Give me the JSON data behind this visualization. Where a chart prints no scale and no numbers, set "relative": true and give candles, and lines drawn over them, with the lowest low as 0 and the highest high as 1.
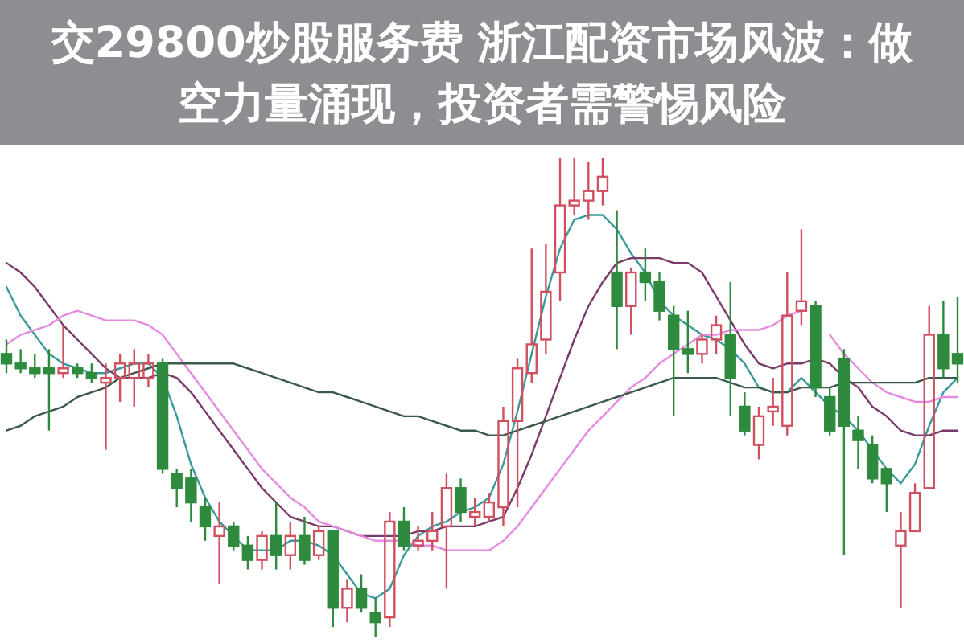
{
  "chart_data": {
    "type": "candlestick",
    "relative": true,
    "title": "交29800炒股服务费 浙江配资市场风波：做空力量涌现，投资者需警惕风险",
    "categories": [
      null,
      null,
      null,
      null,
      null,
      null,
      null,
      null,
      null,
      null,
      null,
      null,
      null,
      null,
      null,
      null,
      null,
      null,
      null,
      null,
      null,
      null,
      null,
      null,
      null,
      null,
      null,
      null,
      null,
      null,
      null,
      null,
      null,
      null,
      null,
      null,
      null,
      null,
      null,
      null,
      null,
      null,
      null,
      null,
      null,
      null,
      null,
      null,
      null,
      null,
      null,
      null,
      null,
      null,
      null,
      null,
      null,
      null,
      null,
      null,
      null,
      null,
      null,
      null,
      null,
      null,
      null,
      null
    ],
    "ohlc": [
      [
        0.59,
        0.62,
        0.55,
        0.57
      ],
      [
        0.57,
        0.6,
        0.55,
        0.56
      ],
      [
        0.56,
        0.59,
        0.54,
        0.55
      ],
      [
        0.56,
        0.6,
        0.43,
        0.55
      ],
      [
        0.55,
        0.65,
        0.54,
        0.56
      ],
      [
        0.56,
        0.57,
        0.54,
        0.55
      ],
      [
        0.55,
        0.57,
        0.53,
        0.54
      ],
      [
        0.53,
        0.57,
        0.39,
        0.54
      ],
      [
        0.54,
        0.59,
        0.49,
        0.57
      ],
      [
        0.54,
        0.6,
        0.48,
        0.57
      ],
      [
        0.54,
        0.59,
        0.52,
        0.57
      ],
      [
        0.57,
        0.58,
        0.34,
        0.35
      ],
      [
        0.34,
        0.35,
        0.27,
        0.31
      ],
      [
        0.33,
        0.35,
        0.24,
        0.28
      ],
      [
        0.27,
        0.29,
        0.2,
        0.23
      ],
      [
        0.21,
        0.28,
        0.11,
        0.23
      ],
      [
        0.23,
        0.24,
        0.18,
        0.19
      ],
      [
        0.19,
        0.21,
        0.14,
        0.16
      ],
      [
        0.16,
        0.22,
        0.14,
        0.21
      ],
      [
        0.21,
        0.28,
        0.14,
        0.17
      ],
      [
        0.17,
        0.24,
        0.14,
        0.21
      ],
      [
        0.21,
        0.25,
        0.15,
        0.16
      ],
      [
        0.17,
        0.23,
        0.16,
        0.22
      ],
      [
        0.22,
        0.22,
        0.02,
        0.06
      ],
      [
        0.06,
        0.12,
        0.03,
        0.1
      ],
      [
        0.1,
        0.13,
        0.05,
        0.06
      ],
      [
        0.05,
        0.08,
        0.0,
        0.03
      ],
      [
        0.04,
        0.26,
        0.02,
        0.24
      ],
      [
        0.24,
        0.27,
        0.18,
        0.19
      ],
      [
        0.19,
        0.23,
        0.18,
        0.2
      ],
      [
        0.2,
        0.26,
        0.18,
        0.22
      ],
      [
        0.23,
        0.34,
        0.1,
        0.31
      ],
      [
        0.31,
        0.33,
        0.24,
        0.26
      ],
      [
        0.25,
        0.29,
        0.23,
        0.26
      ],
      [
        0.25,
        0.3,
        0.24,
        0.28
      ],
      [
        0.27,
        0.48,
        0.23,
        0.45
      ],
      [
        0.45,
        0.58,
        0.27,
        0.56
      ],
      [
        0.55,
        0.81,
        0.53,
        0.61
      ],
      [
        0.62,
        0.82,
        0.59,
        0.72
      ],
      [
        0.76,
        1.0,
        0.7,
        0.9
      ],
      [
        0.9,
        1.0,
        0.88,
        0.91
      ],
      [
        0.91,
        0.99,
        0.87,
        0.93
      ],
      [
        0.93,
        1.0,
        0.9,
        0.96
      ],
      [
        0.76,
        0.89,
        0.6,
        0.69
      ],
      [
        0.69,
        0.77,
        0.63,
        0.76
      ],
      [
        0.76,
        0.81,
        0.7,
        0.74
      ],
      [
        0.74,
        0.76,
        0.66,
        0.68
      ],
      [
        0.67,
        0.69,
        0.46,
        0.6
      ],
      [
        0.6,
        0.68,
        0.55,
        0.59
      ],
      [
        0.59,
        0.63,
        0.57,
        0.62
      ],
      [
        0.62,
        0.67,
        0.59,
        0.65
      ],
      [
        0.63,
        0.74,
        0.46,
        0.54
      ],
      [
        0.48,
        0.51,
        0.42,
        0.43
      ],
      [
        0.4,
        0.48,
        0.37,
        0.46
      ],
      [
        0.47,
        0.54,
        0.44,
        0.48
      ],
      [
        0.44,
        0.76,
        0.42,
        0.67
      ],
      [
        0.68,
        0.85,
        0.65,
        0.7
      ],
      [
        0.69,
        0.7,
        0.5,
        0.52
      ],
      [
        0.5,
        0.52,
        0.42,
        0.43
      ],
      [
        0.58,
        0.6,
        0.17,
        0.44
      ],
      [
        0.43,
        0.46,
        0.35,
        0.41
      ],
      [
        0.4,
        0.42,
        0.32,
        0.33
      ],
      [
        0.35,
        0.35,
        0.26,
        0.32
      ],
      [
        0.19,
        0.26,
        0.06,
        0.22
      ],
      [
        0.22,
        0.32,
        0.22,
        0.3
      ],
      [
        0.31,
        0.69,
        0.31,
        0.63
      ],
      [
        0.63,
        0.7,
        0.54,
        0.56
      ],
      [
        0.59,
        0.71,
        0.53,
        0.57
      ]
    ],
    "colors": [
      "#2e8b3e",
      "#2e8b3e",
      "#2e8b3e",
      "#2e8b3e",
      "#d05060",
      "#2e8b3e",
      "#2e8b3e",
      "#d05060",
      "#d05060",
      "#d05060",
      "#d05060",
      "#2e8b3e",
      "#2e8b3e",
      "#2e8b3e",
      "#2e8b3e",
      "#d05060",
      "#2e8b3e",
      "#2e8b3e",
      "#d05060",
      "#2e8b3e",
      "#d05060",
      "#2e8b3e",
      "#d05060",
      "#2e8b3e",
      "#d05060",
      "#2e8b3e",
      "#2e8b3e",
      "#d05060",
      "#2e8b3e",
      "#d05060",
      "#d05060",
      "#d05060",
      "#2e8b3e",
      "#d05060",
      "#d05060",
      "#d05060",
      "#d05060",
      "#d05060",
      "#d05060",
      "#d05060",
      "#d05060",
      "#d05060",
      "#d05060",
      "#2e8b3e",
      "#d05060",
      "#2e8b3e",
      "#2e8b3e",
      "#2e8b3e",
      "#2e8b3e",
      "#d05060",
      "#d05060",
      "#2e8b3e",
      "#2e8b3e",
      "#d05060",
      "#d05060",
      "#d05060",
      "#d05060",
      "#2e8b3e",
      "#2e8b3e",
      "#2e8b3e",
      "#2e8b3e",
      "#2e8b3e",
      "#2e8b3e",
      "#d05060",
      "#d05060",
      "#d05060",
      "#2e8b3e",
      "#2e8b3e"
    ],
    "series": [
      {
        "type": "line",
        "color": "#3a9a9a",
        "values": [
          0.73,
          0.67,
          0.63,
          0.59,
          0.57,
          0.56,
          0.55,
          0.55,
          0.56,
          0.57,
          0.57,
          0.54,
          0.46,
          0.36,
          0.29,
          0.24,
          0.21,
          0.18,
          0.18,
          0.18,
          0.2,
          0.2,
          0.19,
          0.17,
          0.13,
          0.09,
          0.08,
          0.1,
          0.17,
          0.21,
          0.23,
          0.24,
          0.26,
          0.27,
          0.29,
          0.36,
          0.47,
          0.59,
          0.71,
          0.81,
          0.87,
          0.88,
          0.88,
          0.85,
          0.8,
          0.76,
          0.7,
          0.67,
          0.65,
          0.63,
          0.62,
          0.6,
          0.57,
          0.52,
          0.51,
          0.51,
          0.54,
          0.51,
          0.48,
          0.46,
          0.43,
          0.39,
          0.35,
          0.32,
          0.36,
          0.44,
          0.51,
          0.54
        ]
      },
      {
        "type": "line",
        "color": "#7a3a6a",
        "values": [
          0.78,
          0.76,
          0.73,
          0.69,
          0.65,
          0.62,
          0.59,
          0.56,
          0.54,
          0.54,
          0.54,
          0.55,
          0.54,
          0.51,
          0.47,
          0.43,
          0.39,
          0.35,
          0.31,
          0.28,
          0.25,
          0.24,
          0.23,
          0.23,
          0.22,
          0.21,
          0.21,
          0.21,
          0.21,
          0.22,
          0.22,
          0.23,
          0.23,
          0.23,
          0.24,
          0.25,
          0.31,
          0.38,
          0.46,
          0.54,
          0.62,
          0.69,
          0.74,
          0.78,
          0.79,
          0.79,
          0.79,
          0.78,
          0.78,
          0.76,
          0.71,
          0.66,
          0.61,
          0.57,
          0.56,
          0.57,
          0.57,
          0.58,
          0.57,
          0.54,
          0.52,
          0.48,
          0.46,
          0.43,
          0.42,
          0.42,
          0.43,
          0.43
        ]
      },
      {
        "type": "line",
        "color": "#e58ae0",
        "values": [
          0.61,
          0.63,
          0.64,
          0.65,
          0.67,
          0.68,
          0.67,
          0.66,
          0.66,
          0.66,
          0.65,
          0.63,
          0.59,
          0.55,
          0.51,
          0.47,
          0.43,
          0.39,
          0.35,
          0.32,
          0.29,
          0.27,
          0.24,
          0.23,
          0.22,
          0.21,
          0.2,
          0.2,
          0.2,
          0.19,
          0.19,
          0.18,
          0.18,
          0.18,
          0.18,
          0.2,
          0.23,
          0.27,
          0.31,
          0.35,
          0.39,
          0.43,
          0.46,
          0.49,
          0.52,
          0.54,
          0.57,
          0.59,
          0.61,
          0.63,
          0.63,
          0.64,
          0.64,
          0.64,
          0.65,
          0.67,
          0.68,
          null,
          0.63,
          0.59,
          0.56,
          0.53,
          0.51,
          0.5,
          0.49,
          0.49,
          0.5,
          0.5
        ]
      },
      {
        "type": "line",
        "color": "#3c5a4c",
        "values": [
          0.43,
          0.44,
          0.46,
          0.47,
          0.48,
          0.5,
          0.51,
          0.52,
          0.54,
          0.55,
          0.56,
          0.57,
          0.57,
          0.57,
          0.57,
          0.57,
          0.57,
          0.56,
          0.55,
          0.54,
          0.53,
          0.52,
          0.51,
          0.51,
          0.5,
          0.49,
          0.48,
          0.47,
          0.46,
          0.46,
          0.45,
          0.44,
          0.43,
          0.43,
          0.42,
          0.42,
          0.43,
          0.44,
          0.45,
          0.46,
          0.47,
          0.48,
          0.49,
          0.5,
          0.51,
          0.52,
          0.53,
          0.54,
          0.54,
          0.54,
          0.54,
          0.53,
          0.52,
          0.52,
          0.51,
          0.51,
          0.52,
          0.52,
          0.52,
          0.53,
          0.53,
          0.53,
          0.53,
          0.53,
          0.53,
          0.54,
          0.54,
          0.54
        ]
      }
    ]
  }
}
